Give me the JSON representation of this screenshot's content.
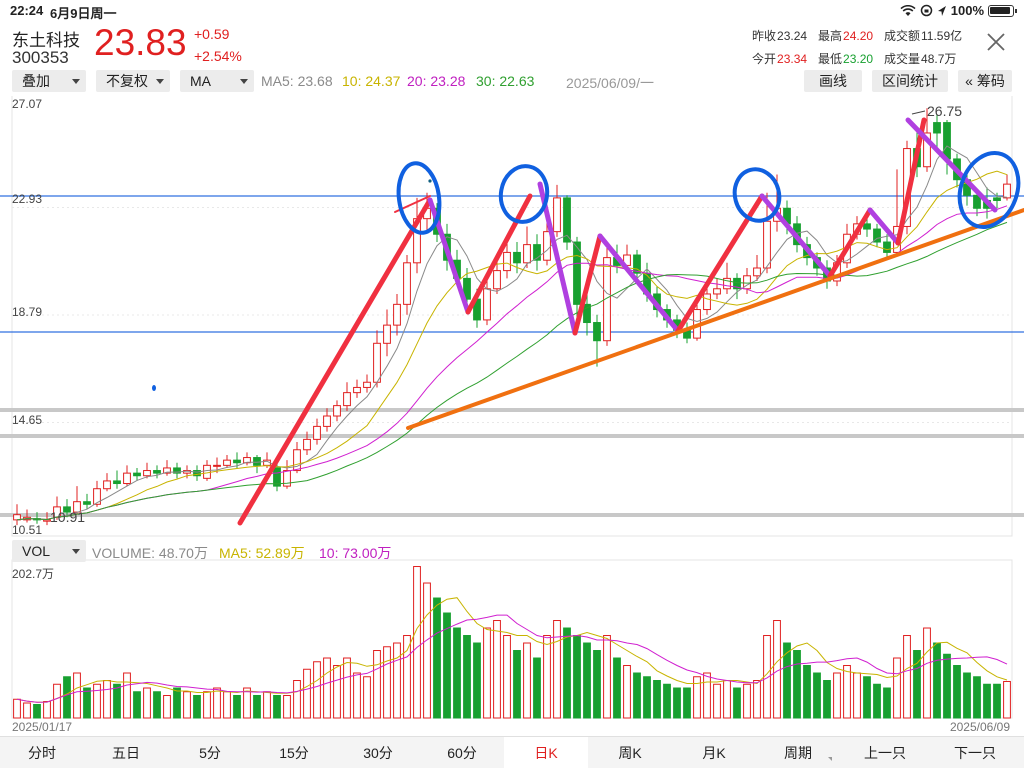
{
  "status_bar": {
    "time": "22:24",
    "date": "6月9日周一",
    "battery": "100%"
  },
  "quote": {
    "name": "东土科技",
    "code": "300353",
    "price": "23.83",
    "change": "+0.59",
    "change_pct": "+2.54%",
    "prev_close_label": "昨收",
    "prev_close": "23.24",
    "open_label": "今开",
    "open": "23.34",
    "high_label": "最高",
    "high": "24.20",
    "low_label": "最低",
    "low": "23.20",
    "turnover_label": "成交额",
    "turnover": "11.59亿",
    "volume_label": "成交量",
    "volume": "48.7万"
  },
  "toolbar": {
    "overlay": "叠加",
    "adjust": "不复权",
    "indicator": "MA",
    "ma5": "MA5: 23.68",
    "ma10": "10: 24.37",
    "ma20": "20: 23.28",
    "ma30": "30: 22.63",
    "date": "2025/06/09/一",
    "draw": "画线",
    "range_stats": "区间统计",
    "chips": "« 筹码"
  },
  "price_axis": {
    "labels": [
      "27.07",
      "22.93",
      "18.79",
      "14.65",
      "10.51"
    ],
    "high_marker": "26.75",
    "low_marker": "10.91"
  },
  "volume_toolbar": {
    "selector": "VOL",
    "volume": "VOLUME: 48.70万",
    "ma5": "MA5: 52.89万",
    "ma10": "10: 73.00万",
    "axis_max": "202.7万",
    "date_start": "2025/01/17",
    "date_end": "2025/06/09"
  },
  "tabs": [
    "分时",
    "五日",
    "5分",
    "15分",
    "30分",
    "60分",
    "日K",
    "周K",
    "月K",
    "周期",
    "上一只",
    "下一只"
  ],
  "colors": {
    "up": "#e02020",
    "down": "#18a030",
    "ma5": "#8a8a8a",
    "ma10": "#c8b400",
    "ma20": "#d020d0",
    "ma30": "#30a030",
    "annotation_red": "#f03040",
    "annotation_purple": "#b040e0",
    "annotation_orange": "#f07010",
    "annotation_blue": "#1060e0"
  },
  "chart_data": {
    "type": "candlestick",
    "price_axis": [
      10.51,
      27.07
    ],
    "volume_axis_max_wan": 202.7,
    "candles": [
      [
        11.1,
        10.9,
        11.5,
        10.7,
        "u",
        25
      ],
      [
        10.9,
        11.0,
        11.3,
        10.8,
        "u",
        20
      ],
      [
        10.95,
        10.9,
        11.2,
        10.75,
        "d",
        18
      ],
      [
        10.9,
        10.85,
        11.2,
        10.7,
        "u",
        22
      ],
      [
        11.0,
        11.4,
        11.8,
        10.9,
        "u",
        45
      ],
      [
        11.4,
        11.2,
        11.7,
        11.0,
        "d",
        55
      ],
      [
        11.2,
        11.6,
        12.2,
        11.1,
        "u",
        60
      ],
      [
        11.6,
        11.5,
        11.9,
        11.3,
        "d",
        40
      ],
      [
        11.5,
        12.1,
        12.4,
        11.4,
        "u",
        45
      ],
      [
        12.1,
        12.4,
        12.7,
        12.0,
        "u",
        50
      ],
      [
        12.4,
        12.3,
        12.8,
        12.1,
        "d",
        45
      ],
      [
        12.3,
        12.7,
        13.0,
        12.2,
        "u",
        60
      ],
      [
        12.7,
        12.6,
        12.9,
        12.4,
        "d",
        35
      ],
      [
        12.6,
        12.8,
        13.1,
        12.5,
        "u",
        40
      ],
      [
        12.8,
        12.7,
        13.0,
        12.5,
        "d",
        35
      ],
      [
        12.7,
        12.9,
        13.2,
        12.6,
        "u",
        30
      ],
      [
        12.9,
        12.7,
        13.1,
        12.5,
        "d",
        40
      ],
      [
        12.7,
        12.8,
        13.0,
        12.5,
        "u",
        35
      ],
      [
        12.8,
        12.6,
        13.0,
        12.4,
        "d",
        30
      ],
      [
        12.5,
        13.0,
        13.2,
        12.4,
        "u",
        35
      ],
      [
        13.0,
        13.0,
        13.3,
        12.7,
        "u",
        40
      ],
      [
        13.0,
        13.2,
        13.4,
        12.9,
        "u",
        35
      ],
      [
        13.2,
        13.1,
        13.5,
        12.9,
        "d",
        30
      ],
      [
        13.1,
        13.3,
        13.5,
        13.0,
        "u",
        40
      ],
      [
        13.3,
        13.0,
        13.4,
        12.7,
        "d",
        30
      ],
      [
        13.0,
        13.2,
        13.5,
        12.9,
        "u",
        35
      ],
      [
        12.9,
        12.2,
        13.1,
        12.0,
        "d",
        30
      ],
      [
        12.2,
        12.8,
        13.2,
        12.1,
        "u",
        30
      ],
      [
        12.8,
        13.6,
        13.9,
        12.7,
        "u",
        50
      ],
      [
        13.6,
        14.0,
        14.3,
        13.4,
        "u",
        65
      ],
      [
        14.0,
        14.5,
        14.8,
        13.8,
        "u",
        75
      ],
      [
        14.5,
        14.9,
        15.2,
        14.3,
        "u",
        80
      ],
      [
        14.9,
        15.3,
        15.5,
        14.7,
        "u",
        70
      ],
      [
        15.3,
        15.8,
        16.2,
        15.1,
        "u",
        80
      ],
      [
        15.8,
        16.0,
        16.3,
        15.6,
        "u",
        60
      ],
      [
        16.0,
        16.2,
        16.5,
        15.8,
        "u",
        55
      ],
      [
        16.2,
        17.7,
        18.2,
        16.0,
        "u",
        90
      ],
      [
        17.7,
        18.4,
        19.0,
        17.2,
        "u",
        95
      ],
      [
        18.4,
        19.2,
        19.6,
        18.0,
        "u",
        100
      ],
      [
        19.2,
        20.8,
        21.1,
        18.8,
        "u",
        110
      ],
      [
        20.8,
        22.5,
        23.3,
        20.4,
        "u",
        202
      ],
      [
        22.5,
        22.9,
        23.5,
        22.0,
        "u",
        180
      ],
      [
        22.9,
        21.9,
        23.1,
        21.6,
        "d",
        160
      ],
      [
        21.9,
        20.9,
        22.3,
        20.5,
        "d",
        140
      ],
      [
        20.9,
        20.2,
        21.3,
        19.9,
        "d",
        120
      ],
      [
        20.2,
        19.4,
        20.6,
        19.2,
        "d",
        110
      ],
      [
        19.4,
        18.6,
        19.8,
        18.3,
        "d",
        100
      ],
      [
        18.6,
        19.8,
        20.2,
        18.4,
        "u",
        120
      ],
      [
        19.8,
        20.5,
        21.0,
        19.6,
        "u",
        130
      ],
      [
        20.5,
        21.2,
        21.8,
        20.2,
        "u",
        110
      ],
      [
        21.2,
        20.8,
        21.6,
        20.4,
        "d",
        90
      ],
      [
        20.8,
        21.5,
        22.2,
        20.6,
        "u",
        100
      ],
      [
        21.5,
        20.9,
        21.9,
        20.5,
        "d",
        80
      ],
      [
        20.9,
        22.0,
        22.6,
        20.7,
        "u",
        110
      ],
      [
        22.0,
        23.3,
        23.8,
        21.8,
        "u",
        130
      ],
      [
        23.3,
        21.6,
        23.4,
        21.3,
        "d",
        120
      ],
      [
        21.6,
        19.2,
        21.8,
        18.6,
        "d",
        110
      ],
      [
        19.2,
        18.5,
        19.6,
        18.0,
        "d",
        100
      ],
      [
        18.5,
        17.8,
        18.8,
        16.8,
        "d",
        90
      ],
      [
        17.8,
        21.0,
        21.4,
        17.6,
        "u",
        110
      ],
      [
        21.0,
        20.7,
        21.5,
        20.4,
        "d",
        80
      ],
      [
        20.7,
        21.1,
        21.5,
        20.6,
        "u",
        70
      ],
      [
        21.1,
        20.4,
        21.3,
        20.1,
        "d",
        60
      ],
      [
        20.4,
        19.6,
        20.8,
        19.3,
        "d",
        55
      ],
      [
        19.6,
        19.0,
        19.9,
        18.7,
        "d",
        50
      ],
      [
        19.0,
        18.6,
        19.2,
        18.3,
        "d",
        45
      ],
      [
        18.6,
        18.2,
        18.8,
        17.9,
        "d",
        40
      ],
      [
        18.2,
        17.9,
        18.5,
        17.7,
        "d",
        40
      ],
      [
        17.9,
        19.0,
        19.4,
        17.8,
        "u",
        55
      ],
      [
        19.0,
        19.6,
        19.9,
        18.8,
        "u",
        60
      ],
      [
        19.6,
        19.8,
        20.2,
        19.4,
        "u",
        45
      ],
      [
        19.8,
        20.2,
        20.8,
        19.6,
        "u",
        50
      ],
      [
        20.2,
        19.8,
        20.4,
        19.4,
        "d",
        40
      ],
      [
        19.8,
        20.3,
        20.6,
        19.6,
        "u",
        45
      ],
      [
        20.3,
        20.6,
        21.1,
        20.1,
        "u",
        50
      ],
      [
        20.6,
        22.4,
        23.5,
        20.4,
        "u",
        110
      ],
      [
        22.4,
        22.9,
        24.2,
        22.0,
        "u",
        130
      ],
      [
        22.9,
        22.3,
        23.2,
        21.9,
        "d",
        100
      ],
      [
        22.3,
        21.5,
        22.6,
        21.2,
        "d",
        90
      ],
      [
        21.5,
        21.0,
        21.8,
        20.7,
        "d",
        70
      ],
      [
        21.0,
        20.6,
        21.2,
        20.3,
        "d",
        60
      ],
      [
        20.6,
        20.1,
        20.9,
        19.8,
        "d",
        50
      ],
      [
        20.1,
        20.8,
        21.1,
        19.9,
        "u",
        60
      ],
      [
        20.8,
        21.9,
        22.3,
        20.6,
        "u",
        70
      ],
      [
        21.9,
        22.3,
        22.6,
        21.7,
        "u",
        60
      ],
      [
        22.3,
        22.1,
        22.6,
        21.8,
        "d",
        55
      ],
      [
        22.1,
        21.6,
        22.3,
        21.4,
        "d",
        45
      ],
      [
        21.6,
        21.2,
        21.9,
        21.0,
        "d",
        40
      ],
      [
        21.2,
        22.2,
        24.4,
        21.1,
        "u",
        80
      ],
      [
        22.2,
        25.2,
        25.5,
        21.9,
        "u",
        110
      ],
      [
        25.2,
        24.5,
        25.9,
        24.1,
        "d",
        90
      ],
      [
        24.5,
        25.8,
        26.75,
        24.3,
        "u",
        120
      ],
      [
        25.8,
        26.2,
        26.5,
        25.2,
        "d",
        100
      ],
      [
        26.2,
        24.8,
        26.3,
        24.2,
        "d",
        85
      ],
      [
        24.8,
        24.0,
        25.0,
        23.7,
        "d",
        70
      ],
      [
        24.0,
        23.4,
        24.2,
        23.0,
        "d",
        60
      ],
      [
        23.4,
        22.9,
        23.6,
        22.6,
        "d",
        55
      ],
      [
        22.9,
        23.2,
        23.7,
        22.5,
        "d",
        45
      ],
      [
        23.2,
        23.3,
        23.5,
        22.9,
        "d",
        45
      ],
      [
        23.3,
        23.83,
        24.2,
        23.2,
        "u",
        48.7
      ]
    ]
  }
}
